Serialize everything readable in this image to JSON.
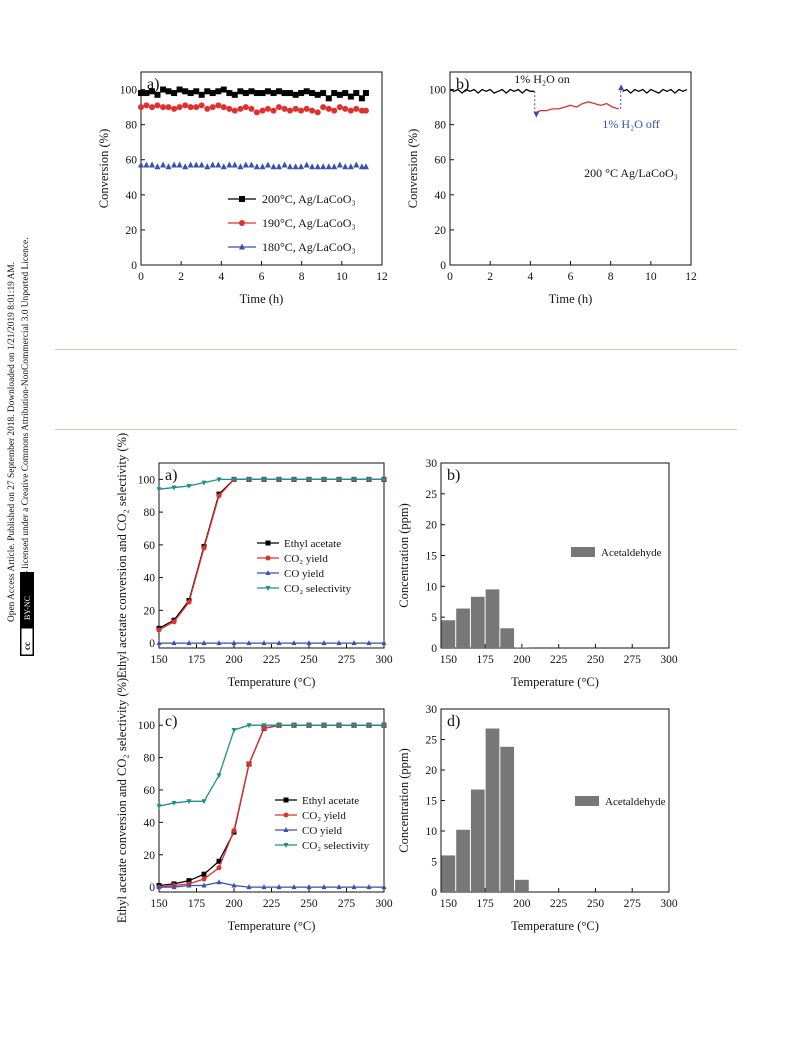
{
  "sidebar": {
    "line1": "Open Access Article. Published on 27 September 2018. Downloaded on 1/21/2019 8:01:19 AM.",
    "line2": "This article is licensed under a Creative Commons Attribution-NonCommercial 3.0 Unported Licence.",
    "badge_cc": "cc",
    "badge_by": "BY-NC"
  },
  "chart_data": [
    {
      "id": "a_top",
      "type": "scatter",
      "panel_label": "a)",
      "xlabel": "Time (h)",
      "ylabel": "Conversion (%)",
      "xlim": [
        0,
        12
      ],
      "ylim": [
        0,
        110
      ],
      "xticks": [
        0,
        2,
        4,
        6,
        8,
        10,
        12
      ],
      "yticks": [
        0,
        20,
        40,
        60,
        80,
        100
      ],
      "legend_position": "bottom-center",
      "series": [
        {
          "name": "200°C, Ag/LaCoO₃",
          "marker": "square",
          "color": "#000000",
          "x": [
            0,
            0.27,
            0.55,
            0.82,
            1.1,
            1.37,
            1.65,
            1.92,
            2.2,
            2.47,
            2.75,
            3.02,
            3.3,
            3.57,
            3.85,
            4.12,
            4.4,
            4.67,
            4.95,
            5.22,
            5.5,
            5.77,
            6.05,
            6.32,
            6.6,
            6.87,
            7.15,
            7.42,
            7.7,
            7.97,
            8.25,
            8.52,
            8.8,
            9.07,
            9.35,
            9.62,
            9.9,
            10.17,
            10.45,
            10.72,
            11,
            11.2
          ],
          "y": [
            98,
            98,
            99,
            97,
            100,
            99,
            98,
            100,
            99,
            98,
            99,
            97,
            99,
            98,
            99,
            100,
            98,
            97,
            99,
            98,
            99,
            98,
            98,
            99,
            98,
            99,
            98,
            98,
            97,
            98,
            99,
            98,
            97,
            98,
            95,
            98,
            97,
            98,
            96,
            98,
            95,
            98
          ]
        },
        {
          "name": "190°C, Ag/LaCoO₃",
          "marker": "circle",
          "color": "#e03030",
          "x": [
            0,
            0.27,
            0.55,
            0.82,
            1.1,
            1.37,
            1.65,
            1.92,
            2.2,
            2.47,
            2.75,
            3.02,
            3.3,
            3.57,
            3.85,
            4.12,
            4.4,
            4.67,
            4.95,
            5.22,
            5.5,
            5.77,
            6.05,
            6.32,
            6.6,
            6.87,
            7.15,
            7.42,
            7.7,
            7.97,
            8.25,
            8.52,
            8.8,
            9.07,
            9.35,
            9.62,
            9.9,
            10.17,
            10.45,
            10.72,
            11,
            11.2
          ],
          "y": [
            90,
            91,
            90,
            91,
            90,
            90,
            89,
            90,
            91,
            90,
            90,
            91,
            89,
            90,
            91,
            90,
            89,
            88,
            89,
            90,
            89,
            87,
            88,
            89,
            88,
            90,
            89,
            88,
            89,
            88,
            89,
            88,
            87,
            90,
            89,
            88,
            90,
            89,
            88,
            89,
            88,
            88
          ]
        },
        {
          "name": "180°C, Ag/LaCoO₃",
          "marker": "triangle",
          "color": "#3a4fb0",
          "x": [
            0,
            0.27,
            0.55,
            0.82,
            1.1,
            1.37,
            1.65,
            1.92,
            2.2,
            2.47,
            2.75,
            3.02,
            3.3,
            3.57,
            3.85,
            4.12,
            4.4,
            4.67,
            4.95,
            5.22,
            5.5,
            5.77,
            6.05,
            6.32,
            6.6,
            6.87,
            7.15,
            7.42,
            7.7,
            7.97,
            8.25,
            8.52,
            8.8,
            9.07,
            9.35,
            9.62,
            9.9,
            10.17,
            10.45,
            10.72,
            11,
            11.2
          ],
          "y": [
            57,
            57,
            57,
            56,
            57,
            56,
            57,
            57,
            56,
            57,
            57,
            57,
            56,
            57,
            57,
            56,
            57,
            57,
            56,
            57,
            57,
            56,
            56,
            57,
            56,
            56,
            57,
            56,
            56,
            56,
            57,
            56,
            56,
            56,
            56,
            56,
            57,
            56,
            56,
            57,
            56,
            56
          ]
        }
      ]
    },
    {
      "id": "b_top",
      "type": "line",
      "panel_label": "b)",
      "xlabel": "Time (h)",
      "ylabel": "Conversion (%)",
      "xlim": [
        0,
        12
      ],
      "ylim": [
        0,
        110
      ],
      "xticks": [
        0,
        2,
        4,
        6,
        8,
        10,
        12
      ],
      "yticks": [
        0,
        20,
        40,
        60,
        80,
        100
      ],
      "annotation_on": "1% H₂O on",
      "annotation_off": "1% H₂O off",
      "inside_label": "200 °C  Ag/LaCoO₃",
      "series": [
        {
          "color": "#000000",
          "x": [
            0,
            0.2,
            0.4,
            0.6,
            0.8,
            1,
            1.2,
            1.4,
            1.6,
            1.8,
            2,
            2.2,
            2.4,
            2.6,
            2.8,
            3,
            3.2,
            3.4,
            3.6,
            3.8,
            4,
            4.2
          ],
          "y": [
            100,
            99,
            100,
            98,
            100,
            99,
            100,
            98,
            100,
            99,
            100,
            98,
            99,
            100,
            98,
            100,
            99,
            100,
            98,
            100,
            99,
            99
          ]
        },
        {
          "color": "#e03030",
          "x": [
            4.3,
            4.5,
            4.8,
            5.1,
            5.4,
            5.7,
            6,
            6.3,
            6.6,
            6.9,
            7.2,
            7.5,
            7.8,
            8.1,
            8.4
          ],
          "y": [
            87,
            88,
            88,
            89,
            89,
            90,
            91,
            90,
            92,
            93,
            92,
            91,
            92,
            90,
            89
          ]
        },
        {
          "color": "#000000",
          "x": [
            8.6,
            8.8,
            9,
            9.2,
            9.4,
            9.6,
            9.8,
            10,
            10.2,
            10.4,
            10.6,
            10.8,
            11,
            11.2,
            11.4,
            11.6,
            11.8
          ],
          "y": [
            99,
            100,
            98,
            100,
            99,
            100,
            98,
            100,
            99,
            98,
            100,
            99,
            100,
            98,
            100,
            99,
            100
          ]
        }
      ]
    },
    {
      "id": "a_mid",
      "type": "line",
      "panel_label": "a)",
      "xlabel": "Temperature (°C)",
      "ylabel": "Ethyl acetate conversion and CO₂ selectivity (%)",
      "xlim": [
        150,
        300
      ],
      "ylim": [
        -3,
        110
      ],
      "xticks": [
        150,
        175,
        200,
        225,
        250,
        275,
        300
      ],
      "yticks": [
        0,
        20,
        40,
        60,
        80,
        100
      ],
      "legend_position": "center-right",
      "series": [
        {
          "name": "Ethyl acetate",
          "marker": "square",
          "color": "#000000",
          "x": [
            150,
            160,
            170,
            180,
            190,
            200,
            210,
            220,
            230,
            240,
            250,
            260,
            270,
            280,
            290,
            300
          ],
          "y": [
            9,
            14,
            26,
            59,
            91,
            100,
            100,
            100,
            100,
            100,
            100,
            100,
            100,
            100,
            100,
            100
          ]
        },
        {
          "name": "CO₂ yield",
          "marker": "circle",
          "color": "#e03030",
          "x": [
            150,
            160,
            170,
            180,
            190,
            200,
            210,
            220,
            230,
            240,
            250,
            260,
            270,
            280,
            290,
            300
          ],
          "y": [
            8,
            13,
            25,
            58,
            90,
            100,
            100,
            100,
            100,
            100,
            100,
            100,
            100,
            100,
            100,
            100
          ]
        },
        {
          "name": "CO yield",
          "marker": "triangle",
          "color": "#3a4fb0",
          "x": [
            150,
            160,
            170,
            180,
            190,
            200,
            210,
            220,
            230,
            240,
            250,
            260,
            270,
            280,
            290,
            300
          ],
          "y": [
            0,
            0,
            0,
            0,
            0,
            0,
            0,
            0,
            0,
            0,
            0,
            0,
            0,
            0,
            0,
            0
          ]
        },
        {
          "name": "CO₂ selectivity",
          "marker": "triangle-down",
          "color": "#1f8f8a",
          "x": [
            150,
            160,
            170,
            180,
            190,
            200,
            210,
            220,
            230,
            240,
            250,
            260,
            270,
            280,
            290,
            300
          ],
          "y": [
            94,
            95,
            96,
            98,
            100,
            100,
            100,
            100,
            100,
            100,
            100,
            100,
            100,
            100,
            100,
            100
          ]
        }
      ]
    },
    {
      "id": "b_mid",
      "type": "bar",
      "panel_label": "b)",
      "xlabel": "Temperature (°C)",
      "ylabel": "Concentration (ppm)",
      "xlim": [
        145,
        300
      ],
      "ylim": [
        0,
        30
      ],
      "xticks": [
        150,
        175,
        200,
        225,
        250,
        275,
        300
      ],
      "yticks": [
        0,
        5,
        10,
        15,
        20,
        25,
        30
      ],
      "legend": "Acetaldehyde",
      "color": "#777777",
      "x": [
        150,
        160,
        170,
        180,
        190,
        200
      ],
      "values": [
        4.5,
        6.4,
        8.3,
        9.5,
        3.2,
        0.1
      ]
    },
    {
      "id": "c_bot",
      "type": "line",
      "panel_label": "c)",
      "xlabel": "Temperature (°C)",
      "ylabel": "Ethyl acetate conversion and CO₂ selectivity (%)",
      "xlim": [
        150,
        300
      ],
      "ylim": [
        -3,
        110
      ],
      "xticks": [
        150,
        175,
        200,
        225,
        250,
        275,
        300
      ],
      "yticks": [
        0,
        20,
        40,
        60,
        80,
        100
      ],
      "legend_position": "bottom-right",
      "series": [
        {
          "name": "Ethyl acetate",
          "marker": "square",
          "color": "#000000",
          "x": [
            150,
            160,
            170,
            180,
            190,
            200,
            210,
            220,
            230,
            240,
            250,
            260,
            270,
            280,
            290,
            300
          ],
          "y": [
            1,
            2,
            4,
            8,
            16,
            34,
            76,
            98,
            100,
            100,
            100,
            100,
            100,
            100,
            100,
            100
          ]
        },
        {
          "name": "CO₂ yield",
          "marker": "circle",
          "color": "#e03030",
          "x": [
            150,
            160,
            170,
            180,
            190,
            200,
            210,
            220,
            230,
            240,
            250,
            260,
            270,
            280,
            290,
            300
          ],
          "y": [
            0,
            1,
            2,
            5,
            12,
            35,
            76,
            98,
            100,
            100,
            100,
            100,
            100,
            100,
            100,
            100
          ]
        },
        {
          "name": "CO yield",
          "marker": "triangle",
          "color": "#3a4fb0",
          "x": [
            150,
            160,
            170,
            180,
            190,
            200,
            210,
            220,
            230,
            240,
            250,
            260,
            270,
            280,
            290,
            300
          ],
          "y": [
            0,
            0,
            1,
            1,
            3,
            1,
            0,
            0,
            0,
            0,
            0,
            0,
            0,
            0,
            0,
            0
          ]
        },
        {
          "name": "CO₂ selectivity",
          "marker": "triangle-down",
          "color": "#1f8f8a",
          "x": [
            150,
            160,
            170,
            180,
            190,
            200,
            210,
            220,
            230,
            240,
            250,
            260,
            270,
            280,
            290,
            300
          ],
          "y": [
            50,
            52,
            53,
            53,
            69,
            97,
            100,
            100,
            100,
            100,
            100,
            100,
            100,
            100,
            100,
            100
          ]
        }
      ]
    },
    {
      "id": "d_bot",
      "type": "bar",
      "panel_label": "d)",
      "xlabel": "Temperature (°C)",
      "ylabel": "Concentration (ppm)",
      "xlim": [
        145,
        300
      ],
      "ylim": [
        0,
        30
      ],
      "xticks": [
        150,
        175,
        200,
        225,
        250,
        275,
        300
      ],
      "yticks": [
        0,
        5,
        10,
        15,
        20,
        25,
        30
      ],
      "legend": "Acetaldehyde",
      "color": "#777777",
      "x": [
        150,
        160,
        170,
        180,
        190,
        200
      ],
      "values": [
        6,
        10.2,
        16.8,
        26.8,
        23.8,
        2
      ]
    }
  ]
}
